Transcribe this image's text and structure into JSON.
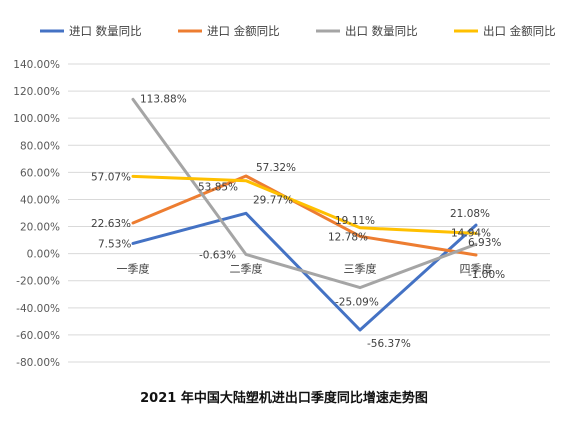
{
  "chart_data": {
    "type": "line",
    "title": "2021 年中国大陆塑机进出口季度同比增速走势图",
    "categories": [
      "一季度",
      "二季度",
      "三季度",
      "四季度"
    ],
    "y_unit": "%",
    "ylim": [
      -80,
      140
    ],
    "y_ticks": [
      140,
      120,
      100,
      80,
      60,
      40,
      20,
      0,
      -20,
      -40,
      -60,
      -80
    ],
    "y_tick_labels": [
      "140.00%",
      "120.00%",
      "100.00%",
      "80.00%",
      "60.00%",
      "40.00%",
      "20.00%",
      "0.00%",
      "-20.00%",
      "-40.00%",
      "-60.00%",
      "-80.00%"
    ],
    "grid": true,
    "legend_position": "top",
    "series": [
      {
        "name": "进口 数量同比",
        "color": "#4472C4",
        "values": [
          7.53,
          29.77,
          -56.37,
          21.08
        ],
        "labels": [
          "7.53%",
          "29.77%",
          "-56.37%",
          "21.08%"
        ]
      },
      {
        "name": "进口 金额同比",
        "color": "#ED7D31",
        "values": [
          22.63,
          57.32,
          12.78,
          -1.0
        ],
        "labels": [
          "22.63%",
          "57.32%",
          "12.78%",
          "-1.00%"
        ]
      },
      {
        "name": "出口 数量同比",
        "color": "#A5A5A5",
        "values": [
          113.88,
          -0.63,
          -25.09,
          6.93
        ],
        "labels": [
          "113.88%",
          "-0.63%",
          "-25.09%",
          "6.93%"
        ]
      },
      {
        "name": "出口 金额同比",
        "color": "#FFC000",
        "values": [
          57.07,
          53.85,
          19.11,
          14.94
        ],
        "labels": [
          "57.07%",
          "53.85%",
          "19.11%",
          "14.94%"
        ]
      }
    ]
  }
}
